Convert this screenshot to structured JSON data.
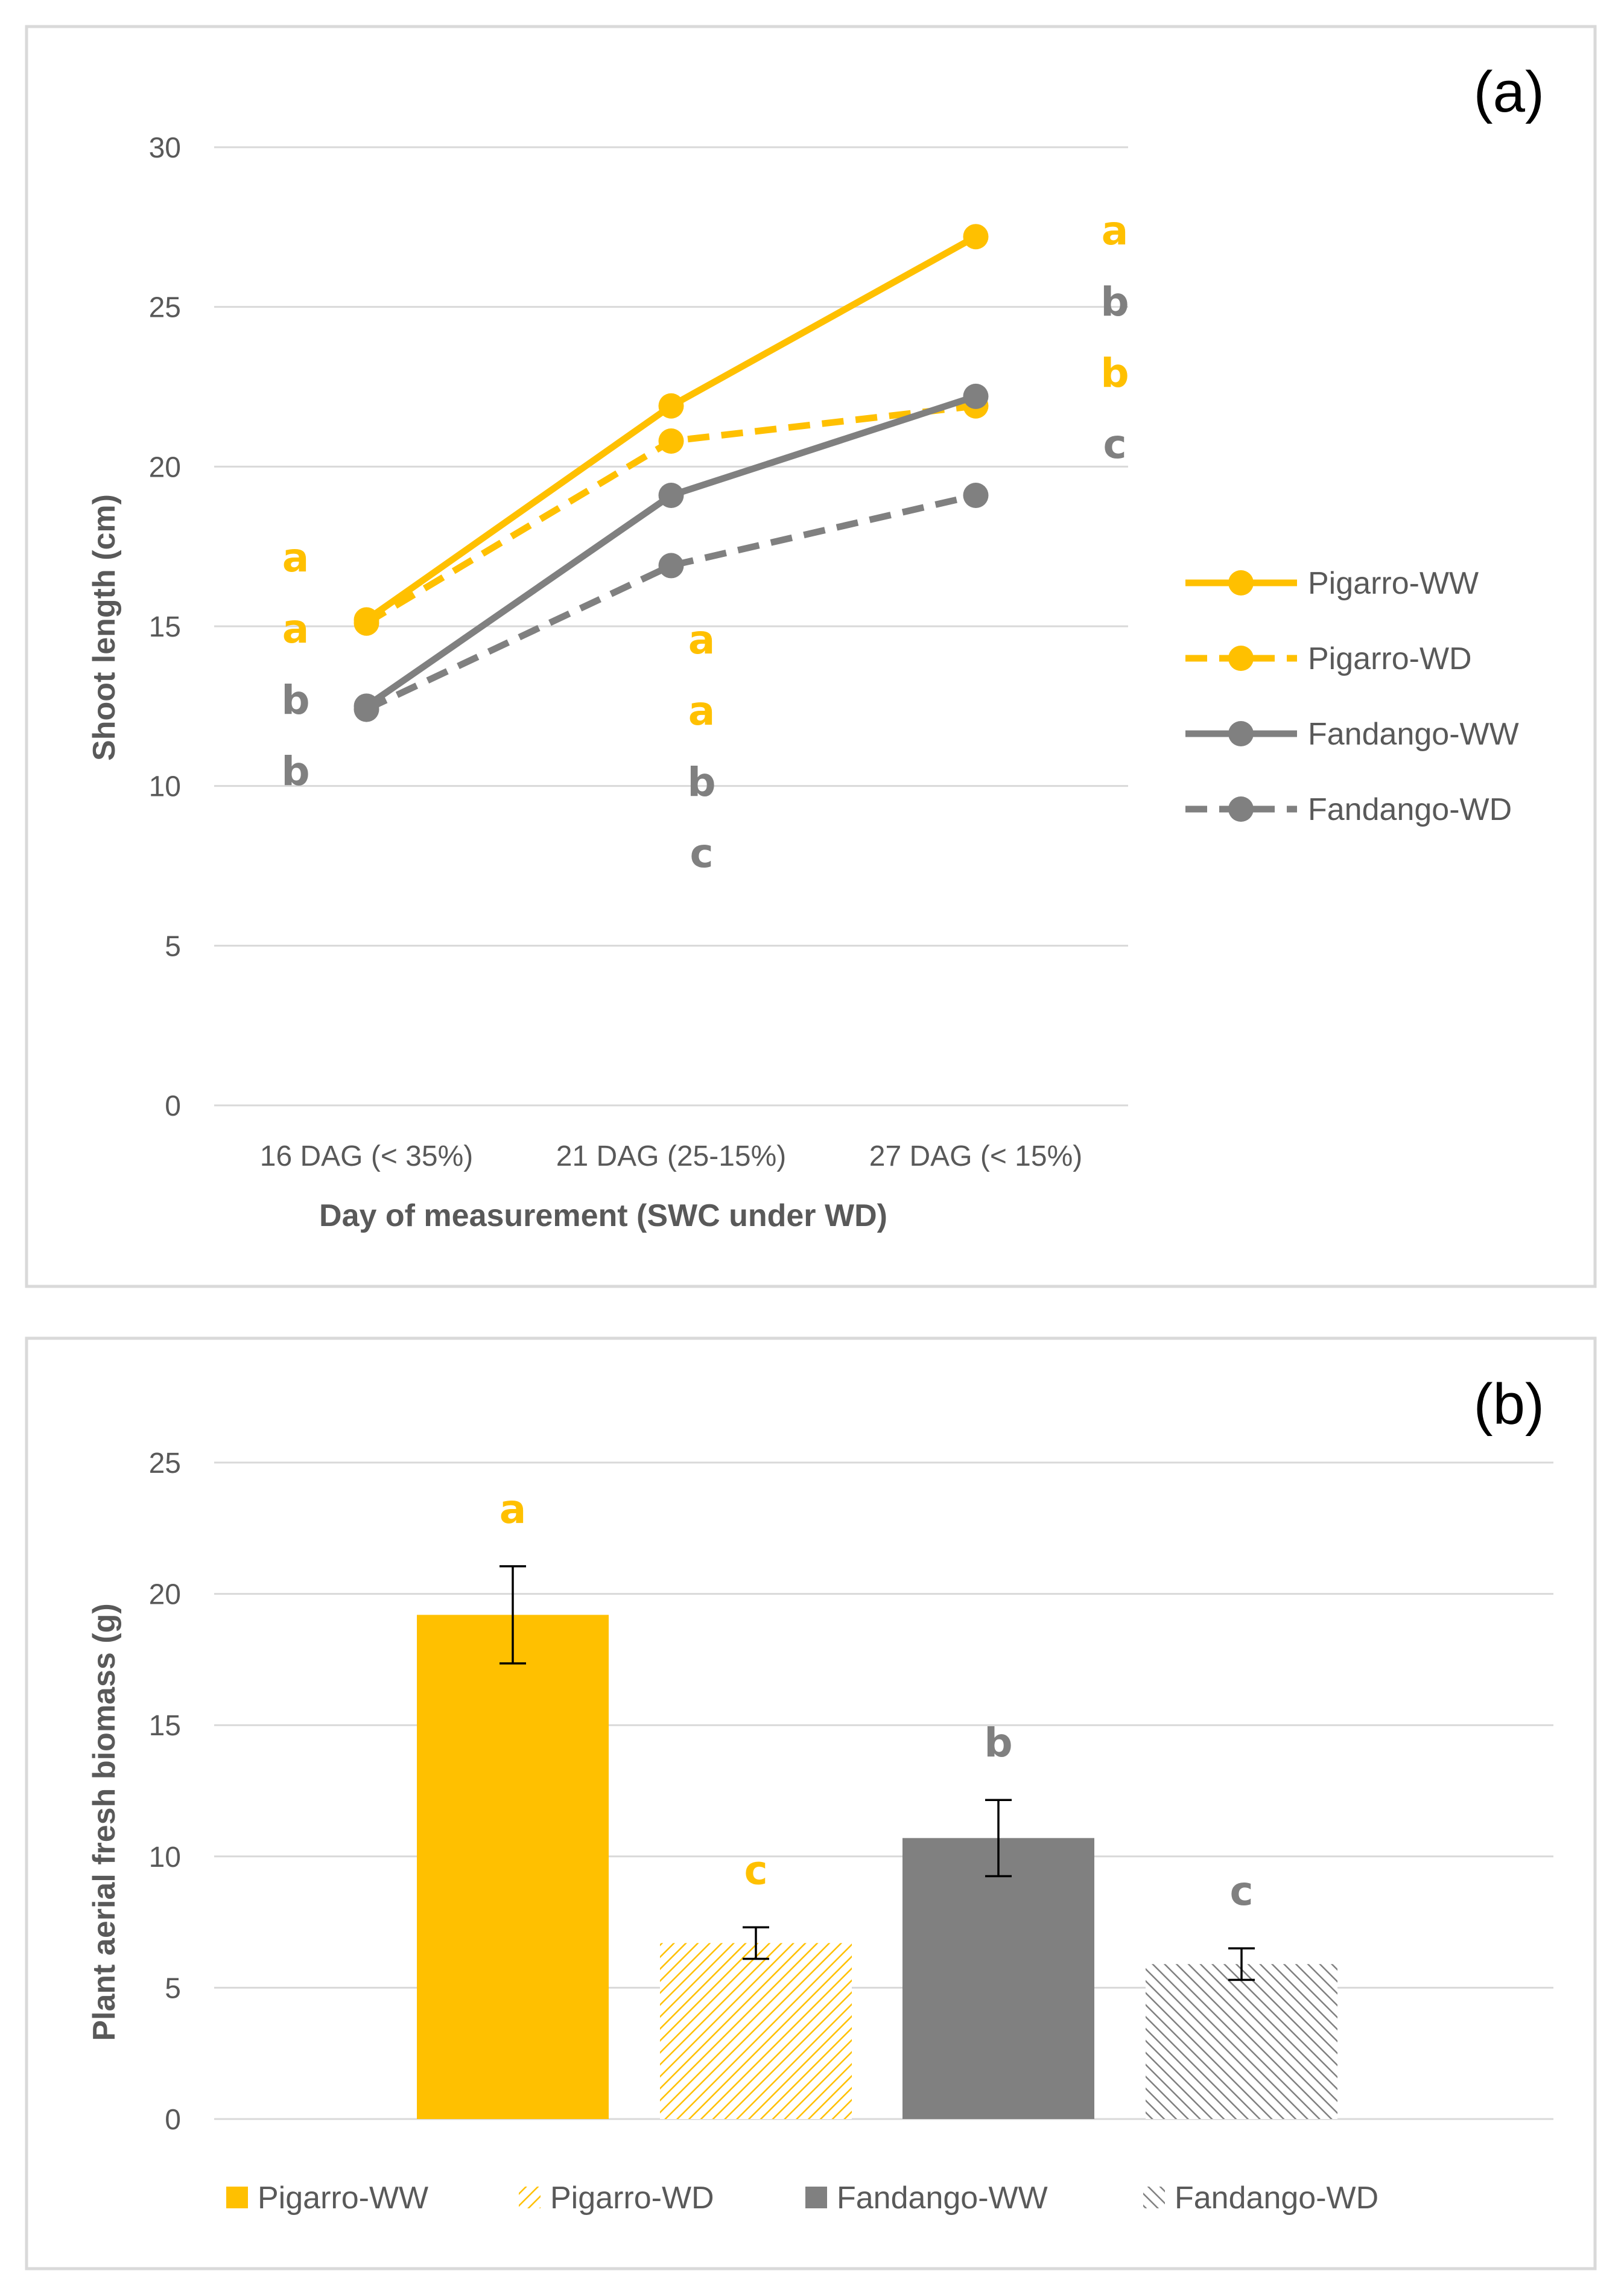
{
  "colors": {
    "pigarro": "#FFC000",
    "fandango": "#808080",
    "grid": "#D9D9D9",
    "frame": "#D9D9D9",
    "text": "#595959"
  },
  "chart_data": [
    {
      "type": "line",
      "panel_label": "(a)",
      "xlabel": "Day of measurement (SWC under WD)",
      "ylabel": "Shoot length (cm)",
      "ylim": [
        0,
        30
      ],
      "yticks": [
        0,
        5,
        10,
        15,
        20,
        25,
        30
      ],
      "categories": [
        "16 DAG (< 35%)",
        "21 DAG (25-15%)",
        "27 DAG (< 15%)"
      ],
      "grid": true,
      "legend_position": "right",
      "series": [
        {
          "name": "Pigarro-WW",
          "values": [
            15.2,
            21.9,
            27.2
          ],
          "color": "pigarro",
          "dash": "solid"
        },
        {
          "name": "Pigarro-WD",
          "values": [
            15.1,
            20.8,
            21.9
          ],
          "color": "pigarro",
          "dash": "dashed"
        },
        {
          "name": "Fandango-WW",
          "values": [
            12.5,
            19.1,
            22.2
          ],
          "color": "fandango",
          "dash": "solid"
        },
        {
          "name": "Fandango-WD",
          "values": [
            12.4,
            16.9,
            19.1
          ],
          "color": "fandango",
          "dash": "dashed"
        }
      ],
      "letter_groups": [
        {
          "category": 0,
          "letters": [
            {
              "text": "a",
              "color": "pigarro"
            },
            {
              "text": "a",
              "color": "pigarro"
            },
            {
              "text": "b",
              "color": "fandango"
            },
            {
              "text": "b",
              "color": "fandango"
            }
          ]
        },
        {
          "category": 1,
          "letters": [
            {
              "text": "a",
              "color": "pigarro"
            },
            {
              "text": "a",
              "color": "pigarro"
            },
            {
              "text": "b",
              "color": "fandango"
            },
            {
              "text": "c",
              "color": "fandango"
            }
          ]
        },
        {
          "category": 2,
          "letters": [
            {
              "text": "a",
              "color": "pigarro"
            },
            {
              "text": "b",
              "color": "fandango"
            },
            {
              "text": "b",
              "color": "pigarro"
            },
            {
              "text": "c",
              "color": "fandango"
            }
          ]
        }
      ]
    },
    {
      "type": "bar",
      "panel_label": "(b)",
      "xlabel": "",
      "ylabel": "Plant aerial fresh biomass (g)",
      "ylim": [
        0,
        25
      ],
      "yticks": [
        0,
        5,
        10,
        15,
        20,
        25
      ],
      "grid": true,
      "legend_position": "bottom",
      "categories": [
        "Pigarro-WW",
        "Pigarro-WD",
        "Fandango-WW",
        "Fandango-WD"
      ],
      "values": [
        19.2,
        6.7,
        10.7,
        5.9
      ],
      "errors": [
        1.85,
        0.6,
        1.45,
        0.6
      ],
      "letters": [
        "a",
        "c",
        "b",
        "c"
      ],
      "bar_colors": [
        "pigarro",
        "pigarro",
        "fandango",
        "fandango"
      ],
      "hatched": [
        false,
        true,
        false,
        true
      ]
    }
  ]
}
